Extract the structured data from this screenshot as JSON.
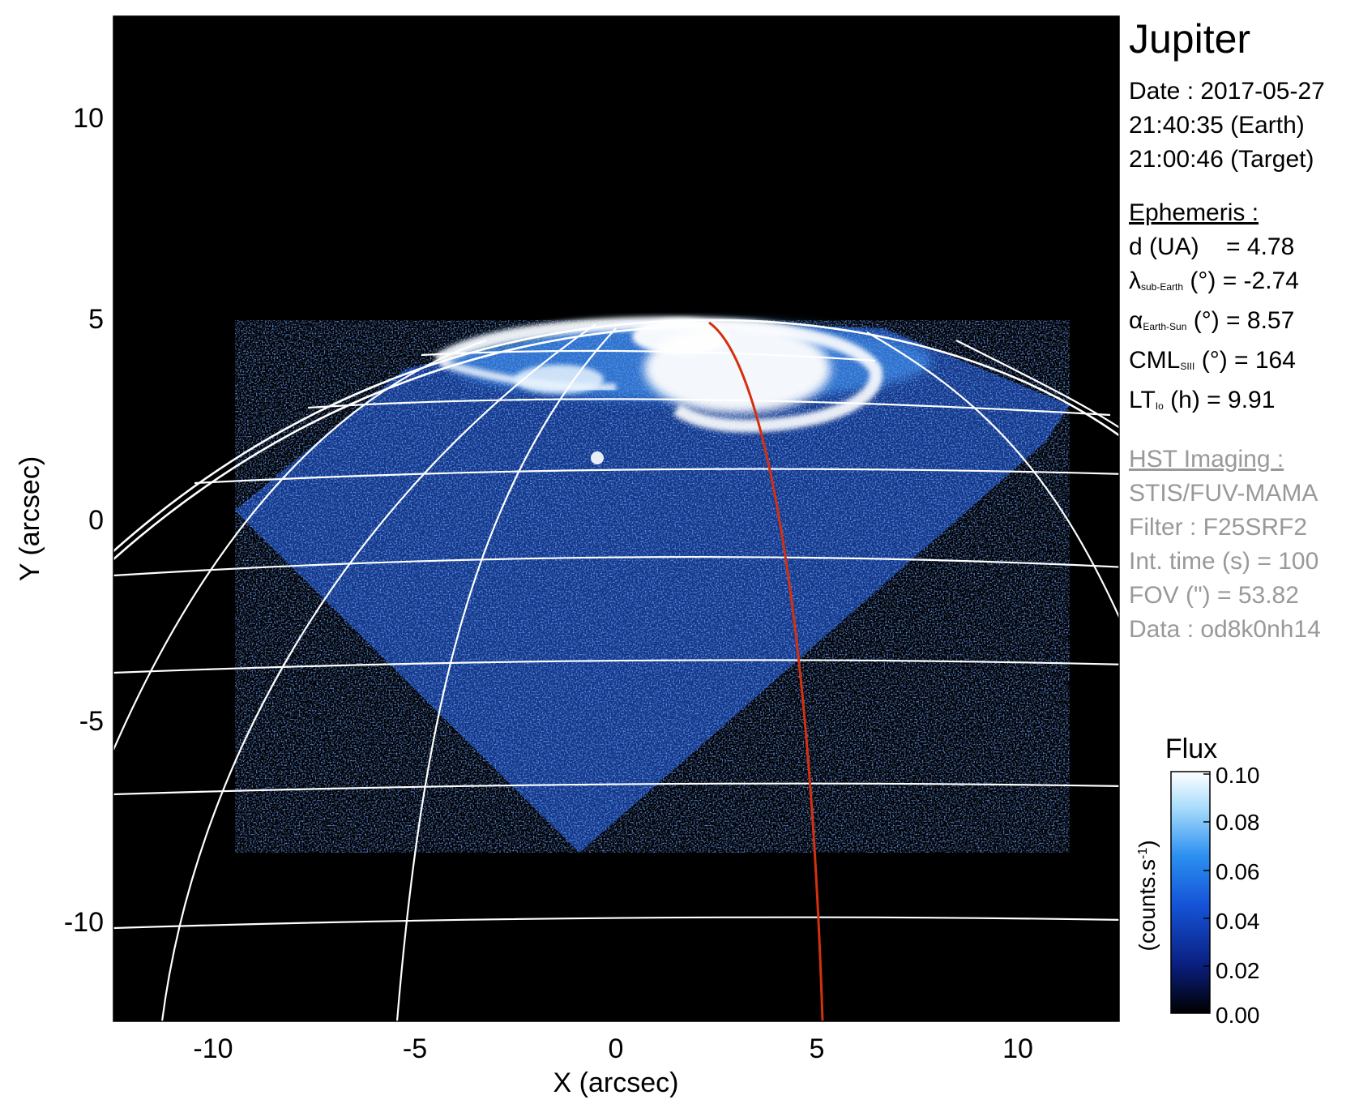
{
  "info": {
    "planet": "Jupiter",
    "date": "Date : 2017-05-27",
    "time_earth": "21:40:35 (Earth)",
    "time_target": "21:00:46 (Target)",
    "ephemeris_heading": "Ephemeris :",
    "eph": {
      "d_label": "d (UA)",
      "d_value": "= 4.78",
      "lambda_sym": "λ",
      "lambda_sub": "sub-Earth",
      "lambda_rest": "(°) = -2.74",
      "alpha_sym": "α",
      "alpha_sub": "Earth-Sun",
      "alpha_rest": "(°) = 8.57",
      "cml_sym": "CML",
      "cml_sub": "SIII",
      "cml_rest": "(°) = 164",
      "lt_sym": "LT",
      "lt_sub": "Io",
      "lt_rest": "(h) = 9.91"
    },
    "hst_heading": "HST Imaging :",
    "hst": {
      "instrument": "STIS/FUV-MAMA",
      "filter": "Filter : F25SRF2",
      "int_time": "Int. time (s) = 100",
      "fov": "FOV (\") = 53.82",
      "data": "Data : od8k0nh14"
    }
  },
  "axes": {
    "xlabel": "X (arcsec)",
    "ylabel": "Y (arcsec)",
    "xticks": [
      "-10",
      "-5",
      "0",
      "5",
      "10"
    ],
    "yticks": [
      "10",
      "5",
      "0",
      "-5",
      "-10"
    ]
  },
  "colorbar": {
    "title": "Flux",
    "unit": "(counts.s",
    "unit_sup": "-1",
    "unit_end": ")",
    "ticks": [
      "0.10",
      "0.08",
      "0.06",
      "0.04",
      "0.02",
      "0.00"
    ],
    "colors": [
      "#000000",
      "#0a1f80",
      "#1554d8",
      "#2b8ff0",
      "#a8dcfb",
      "#ffffff"
    ]
  },
  "colors": {
    "background": "#000000",
    "grid": "#ffffff",
    "meridian_highlight": "#d43010",
    "aurora_core": "#ffffff",
    "disk_emission": "#1d47b8"
  }
}
